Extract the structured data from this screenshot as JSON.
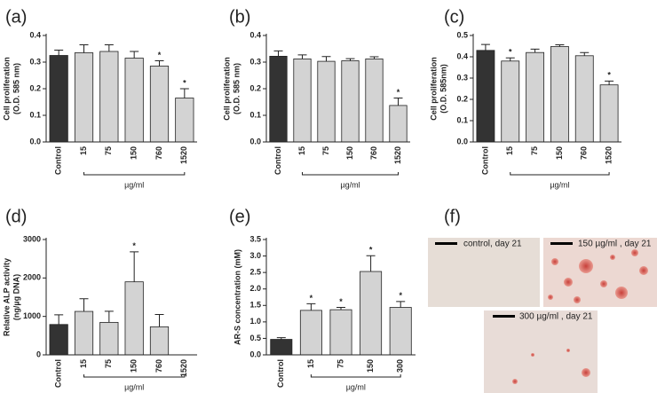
{
  "chart_data": [
    {
      "type": "bar",
      "panel": "(a)",
      "ylabel": [
        "Cell proliferation",
        "(O.D. 585 nm)"
      ],
      "xlabel": "µg/ml",
      "categories": [
        "Control",
        "15",
        "75",
        "150",
        "760",
        "1520"
      ],
      "values": [
        0.325,
        0.335,
        0.34,
        0.315,
        0.285,
        0.165
      ],
      "errors": [
        0.02,
        0.03,
        0.025,
        0.025,
        0.02,
        0.035
      ],
      "significance": [
        null,
        null,
        null,
        null,
        "*",
        "*"
      ],
      "colors": [
        "#333333",
        "#d3d3d3",
        "#d3d3d3",
        "#d3d3d3",
        "#d3d3d3",
        "#d3d3d3"
      ],
      "ylim": [
        0,
        0.4
      ],
      "yticks": [
        {
          "value": 0,
          "label": "0.0"
        },
        0.1,
        0.2,
        0.3,
        0.4
      ]
    },
    {
      "type": "bar",
      "panel": "(b)",
      "ylabel": [
        "Cell proliferation",
        "(O.D. 585 nm)"
      ],
      "xlabel": "µg/ml",
      "categories": [
        "Control",
        "15",
        "75",
        "150",
        "760",
        "1520"
      ],
      "values": [
        0.322,
        0.312,
        0.303,
        0.305,
        0.312,
        0.137
      ],
      "errors": [
        0.02,
        0.015,
        0.018,
        0.008,
        0.008,
        0.028
      ],
      "significance": [
        null,
        null,
        null,
        null,
        null,
        "*"
      ],
      "colors": [
        "#333333",
        "#d3d3d3",
        "#d3d3d3",
        "#d3d3d3",
        "#d3d3d3",
        "#d3d3d3"
      ],
      "ylim": [
        0,
        0.4
      ],
      "yticks": [
        {
          "value": 0,
          "label": "0.0"
        },
        0.1,
        0.2,
        0.3,
        0.4
      ]
    },
    {
      "type": "bar",
      "panel": "(c)",
      "ylabel": [
        "Cell proliferation",
        "(O.D. 585nm)"
      ],
      "xlabel": "µg/ml",
      "categories": [
        "Control",
        "15",
        "75",
        "150",
        "760",
        "1520"
      ],
      "values": [
        0.43,
        0.38,
        0.42,
        0.448,
        0.405,
        0.268
      ],
      "errors": [
        0.028,
        0.015,
        0.016,
        0.008,
        0.015,
        0.018
      ],
      "significance": [
        null,
        "*",
        null,
        null,
        null,
        "*"
      ],
      "colors": [
        "#333333",
        "#d3d3d3",
        "#d3d3d3",
        "#d3d3d3",
        "#d3d3d3",
        "#d3d3d3"
      ],
      "ylim": [
        0,
        0.5
      ],
      "yticks": [
        {
          "value": 0,
          "label": "0.0"
        },
        0.1,
        0.2,
        0.3,
        0.4,
        0.5
      ]
    },
    {
      "type": "bar",
      "panel": "(d)",
      "ylabel": [
        "Relative ALP activity",
        "(ng/µg DNA)"
      ],
      "xlabel": "µg/ml",
      "categories": [
        "Control",
        "15",
        "75",
        "150",
        "760",
        "1520"
      ],
      "values": [
        790,
        1130,
        845,
        1900,
        730,
        0
      ],
      "errors": [
        250,
        330,
        290,
        780,
        320,
        null
      ],
      "significance": [
        null,
        null,
        null,
        "*",
        null,
        null
      ],
      "colors": [
        "#333333",
        "#d3d3d3",
        "#d3d3d3",
        "#d3d3d3",
        "#d3d3d3",
        "#d3d3d3"
      ],
      "ylim": [
        0,
        3000
      ],
      "yticks": [
        0,
        1000,
        2000,
        3000
      ]
    },
    {
      "type": "bar",
      "panel": "(e)",
      "ylabel": [
        "AR-S concentration (mM)"
      ],
      "xlabel": "µg/ml",
      "categories": [
        "Control",
        "15",
        "75",
        "150",
        "300"
      ],
      "values": [
        0.47,
        1.35,
        1.37,
        2.53,
        1.44
      ],
      "errors": [
        0.05,
        0.2,
        0.07,
        0.48,
        0.18
      ],
      "significance": [
        null,
        "*",
        "*",
        "*",
        "*"
      ],
      "colors": [
        "#333333",
        "#d3d3d3",
        "#d3d3d3",
        "#d3d3d3",
        "#d3d3d3"
      ],
      "ylim": [
        0,
        3.5
      ],
      "yticks": [
        {
          "value": 0,
          "label": "0.0"
        },
        0.5,
        {
          "value": 1,
          "label": "1.0"
        },
        1.5,
        {
          "value": 2,
          "label": "2.0"
        },
        2.5,
        {
          "value": 3,
          "label": "3.0"
        },
        3.5
      ]
    }
  ],
  "figure_f": {
    "panel": "(f)",
    "captions": [
      "control, day 21",
      "150 µg/ml , day 21",
      "300 µg/ml , day 21"
    ]
  }
}
